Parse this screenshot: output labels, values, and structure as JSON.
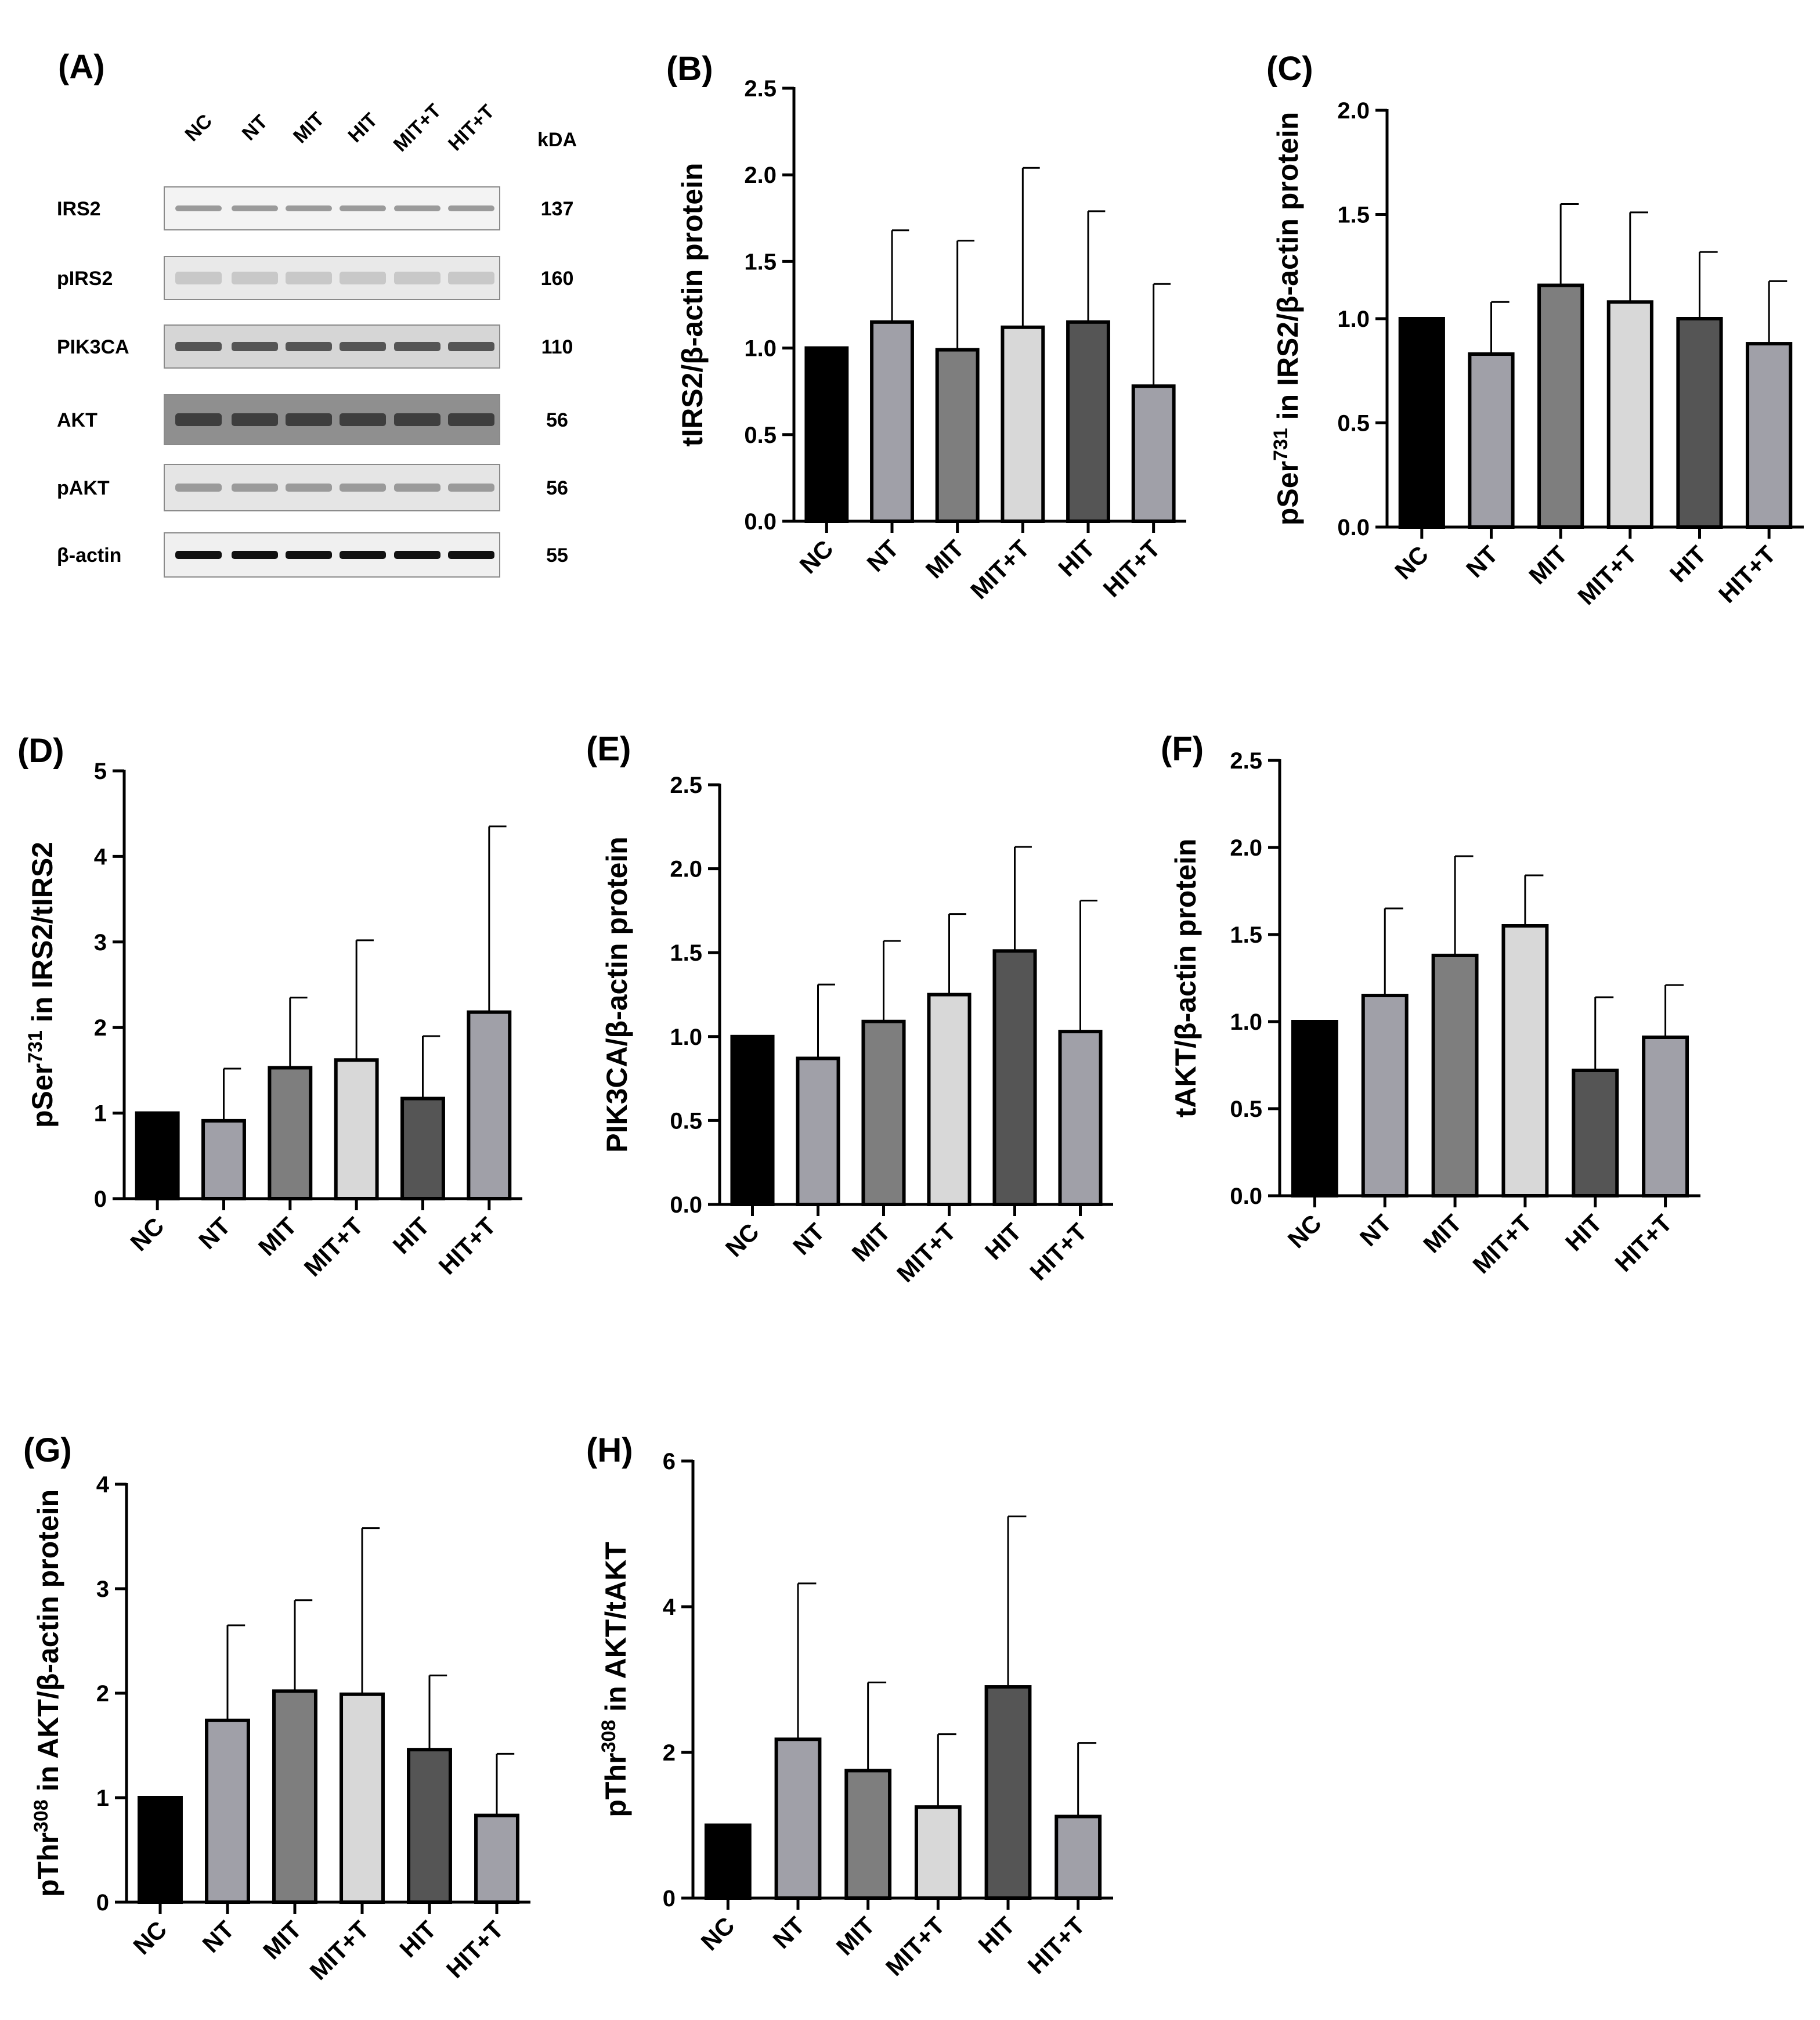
{
  "blot": {
    "label": "(A)",
    "lanes": [
      "NC",
      "NT",
      "MIT",
      "HIT",
      "MIT+T",
      "HIT+T"
    ],
    "kda_header": "kDA",
    "proteins": [
      {
        "name": "IRS2",
        "kda": "137"
      },
      {
        "name": "pIRS2",
        "kda": "160"
      },
      {
        "name": "PIK3CA",
        "kda": "110"
      },
      {
        "name": "AKT",
        "kda": "56"
      },
      {
        "name": "pAKT",
        "kda": "56"
      },
      {
        "name": "β-actin",
        "kda": "55"
      }
    ]
  },
  "colors": {
    "NC": "#000000",
    "NT": "#a0a0a8",
    "MIT": "#7e7e7e",
    "MIT+T": "#d8d8d8",
    "HIT": "#555555",
    "HIT+T": "#a0a0a8"
  },
  "chart_data": [
    {
      "panel": "(B)",
      "type": "bar",
      "categories": [
        "NC",
        "NT",
        "MIT",
        "MIT+T",
        "HIT",
        "HIT+T"
      ],
      "values": [
        1.0,
        1.15,
        0.99,
        1.12,
        1.15,
        0.78
      ],
      "errors": [
        0,
        0.53,
        0.63,
        0.92,
        0.64,
        0.59
      ],
      "ylim": [
        0,
        2.5
      ],
      "yticks": [
        "0.0",
        "0.5",
        "1.0",
        "1.5",
        "2.0",
        "2.5"
      ],
      "ylabel": "tIRS2/β-actin protein",
      "xlabel": ""
    },
    {
      "panel": "(C)",
      "type": "bar",
      "categories": [
        "NC",
        "NT",
        "MIT",
        "MIT+T",
        "HIT",
        "HIT+T"
      ],
      "values": [
        1.0,
        0.83,
        1.16,
        1.08,
        1.0,
        0.88
      ],
      "errors": [
        0,
        0.25,
        0.39,
        0.43,
        0.32,
        0.3
      ],
      "ylim": [
        0,
        2.0
      ],
      "yticks": [
        "0.0",
        "0.5",
        "1.0",
        "1.5",
        "2.0"
      ],
      "ylabel_pre": "pSer",
      "ylabel_sup": "731",
      "ylabel_post": " in IRS2/β-actin protein",
      "xlabel": ""
    },
    {
      "panel": "(D)",
      "type": "bar",
      "categories": [
        "NC",
        "NT",
        "MIT",
        "MIT+T",
        "HIT",
        "HIT+T"
      ],
      "values": [
        1.0,
        0.91,
        1.53,
        1.62,
        1.17,
        2.18
      ],
      "errors": [
        0,
        0.61,
        0.82,
        1.4,
        0.73,
        2.17
      ],
      "ylim": [
        0,
        5
      ],
      "yticks": [
        "0",
        "1",
        "2",
        "3",
        "4",
        "5"
      ],
      "ylabel_pre": "pSer",
      "ylabel_sup": "731",
      "ylabel_post": " in IRS2/tIRS2",
      "xlabel": ""
    },
    {
      "panel": "(E)",
      "type": "bar",
      "categories": [
        "NC",
        "NT",
        "MIT",
        "MIT+T",
        "HIT",
        "HIT+T"
      ],
      "values": [
        1.0,
        0.87,
        1.09,
        1.25,
        1.51,
        1.03
      ],
      "errors": [
        0,
        0.44,
        0.48,
        0.48,
        0.62,
        0.78
      ],
      "ylim": [
        0,
        2.5
      ],
      "yticks": [
        "0.0",
        "0.5",
        "1.0",
        "1.5",
        "2.0",
        "2.5"
      ],
      "ylabel": "PIK3CA/β-actin protein",
      "xlabel": ""
    },
    {
      "panel": "(F)",
      "type": "bar",
      "categories": [
        "NC",
        "NT",
        "MIT",
        "MIT+T",
        "HIT",
        "HIT+T"
      ],
      "values": [
        1.0,
        1.15,
        1.38,
        1.55,
        0.72,
        0.91
      ],
      "errors": [
        0,
        0.5,
        0.57,
        0.29,
        0.42,
        0.3
      ],
      "ylim": [
        0,
        2.5
      ],
      "yticks": [
        "0.0",
        "0.5",
        "1.0",
        "1.5",
        "2.0",
        "2.5"
      ],
      "ylabel": "tAKT/β-actin protein",
      "xlabel": ""
    },
    {
      "panel": "(G)",
      "type": "bar",
      "categories": [
        "NC",
        "NT",
        "MIT",
        "MIT+T",
        "HIT",
        "HIT+T"
      ],
      "values": [
        1.0,
        1.74,
        2.02,
        1.99,
        1.46,
        0.83
      ],
      "errors": [
        0,
        0.91,
        0.87,
        1.59,
        0.71,
        0.59
      ],
      "ylim": [
        0,
        4
      ],
      "yticks": [
        "0",
        "1",
        "2",
        "3",
        "4"
      ],
      "ylabel_pre": "pThr",
      "ylabel_sup": "308",
      "ylabel_post": " in AKT/β-actin protein",
      "xlabel": ""
    },
    {
      "panel": "(H)",
      "type": "bar",
      "categories": [
        "NC",
        "NT",
        "MIT",
        "MIT+T",
        "HIT",
        "HIT+T"
      ],
      "values": [
        1.0,
        2.18,
        1.75,
        1.25,
        2.9,
        1.12
      ],
      "errors": [
        0,
        2.14,
        1.21,
        1.0,
        2.34,
        1.01
      ],
      "ylim": [
        0,
        6
      ],
      "yticks": [
        "0",
        "2",
        "4",
        "6"
      ],
      "ylabel_pre": "pThr",
      "ylabel_sup": "308",
      "ylabel_post": " in AKT/tAKT",
      "xlabel": ""
    }
  ]
}
